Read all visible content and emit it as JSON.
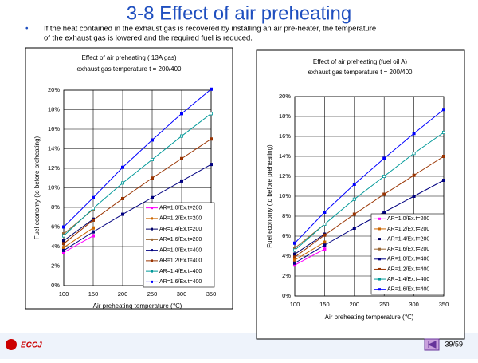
{
  "slide": {
    "title": "3-8 Effect of air preheating",
    "bullet": [
      "If the heat contained in the exhaust gas is recovered by installing an air pre-heater, the temperature",
      "of the exhaust gas is lowered and the required fuel is reduced."
    ],
    "logo": "ECCJ",
    "page_number": "39/59"
  },
  "chart_data": [
    {
      "type": "line",
      "title": "Effect of air preheating ( 13A gas)",
      "subtitle": "exhaust gas temperature t = 200/400",
      "x_label": "Air preheating temperature (℃)",
      "y_label": "Fuel economy (to before preheating)",
      "grid": true,
      "x": [
        100,
        150,
        200,
        250,
        300,
        350
      ],
      "xlim": [
        100,
        350
      ],
      "xticks": [
        100,
        150,
        200,
        250,
        300,
        350
      ],
      "ylim": [
        0,
        20
      ],
      "yticks": [
        {
          "value": 0,
          "label": "0%"
        },
        {
          "value": 2,
          "label": "2%"
        },
        {
          "value": 4,
          "label": "4%"
        },
        {
          "value": 6,
          "label": "6%"
        },
        {
          "value": 8,
          "label": "8%"
        },
        {
          "value": 10,
          "label": "10%"
        },
        {
          "value": 12,
          "label": "12%"
        },
        {
          "value": 14,
          "label": "14%"
        },
        {
          "value": 16,
          "label": "16%"
        },
        {
          "value": 18,
          "label": "18%"
        },
        {
          "value": 20,
          "label": "20%"
        }
      ],
      "series": [
        {
          "name": "AR=1.0/Ex.t=200",
          "color": "#ff00ff",
          "values": [
            3.4,
            5.1,
            null,
            null,
            null,
            null
          ]
        },
        {
          "name": "AR=1.2/Ex.t=200",
          "color": "#cc6600",
          "values": [
            3.9,
            5.9,
            null,
            null,
            null,
            null
          ]
        },
        {
          "name": "AR=1.4/Ex.t=200",
          "color": "#000066",
          "values": [
            4.6,
            6.8,
            null,
            null,
            null,
            null
          ]
        },
        {
          "name": "AR=1.6/Ex.t=200",
          "color": "#996633",
          "values": [
            5.3,
            7.8,
            null,
            null,
            null,
            null
          ]
        },
        {
          "name": "AR=1.0/Ex.t=400",
          "color": "#000080",
          "values": [
            3.6,
            5.5,
            7.3,
            9.0,
            10.7,
            12.4
          ]
        },
        {
          "name": "AR=1.2/Ex.t=400",
          "color": "#993300",
          "values": [
            4.3,
            6.7,
            8.9,
            11.0,
            13.0,
            15.0
          ]
        },
        {
          "name": "AR=1.4/Ex.t=400",
          "color": "#009999",
          "values": [
            5.1,
            7.9,
            10.5,
            12.9,
            15.3,
            17.6
          ]
        },
        {
          "name": "AR=1.6/Ex.t=400",
          "color": "#0000ff",
          "values": [
            6.0,
            9.0,
            12.1,
            14.9,
            17.6,
            20.1
          ]
        }
      ]
    },
    {
      "type": "line",
      "title": "Effect of air preheating (fuel oil A)",
      "subtitle": "exhaust gas temperature t = 200/400",
      "x_label": "Air preheating temperature (℃)",
      "y_label": "Fuel economy (to before preheating)",
      "grid": true,
      "x": [
        100,
        150,
        200,
        250,
        300,
        350
      ],
      "xlim": [
        100,
        350
      ],
      "xticks": [
        100,
        150,
        200,
        250,
        300,
        350
      ],
      "ylim": [
        0,
        20
      ],
      "yticks": [
        {
          "value": 0,
          "label": "0%"
        },
        {
          "value": 2,
          "label": "2%"
        },
        {
          "value": 4,
          "label": "4%"
        },
        {
          "value": 6,
          "label": "6%"
        },
        {
          "value": 8,
          "label": "8%"
        },
        {
          "value": 10,
          "label": "10%"
        },
        {
          "value": 12,
          "label": "12%"
        },
        {
          "value": 14,
          "label": "14%"
        },
        {
          "value": 16,
          "label": "16%"
        },
        {
          "value": 18,
          "label": "18%"
        },
        {
          "value": 20,
          "label": "20%"
        }
      ],
      "series": [
        {
          "name": "AR=1.0/Ex.t=200",
          "color": "#ff00ff",
          "values": [
            3.1,
            4.7,
            null,
            null,
            null,
            null
          ]
        },
        {
          "name": "AR=1.2/Ex.t=200",
          "color": "#cc6600",
          "values": [
            3.6,
            5.4,
            null,
            null,
            null,
            null
          ]
        },
        {
          "name": "AR=1.4/Ex.t=200",
          "color": "#000066",
          "values": [
            4.2,
            6.2,
            null,
            null,
            null,
            null
          ]
        },
        {
          "name": "AR=1.6/Ex.t=200",
          "color": "#996633",
          "values": [
            4.8,
            7.2,
            null,
            null,
            null,
            null
          ]
        },
        {
          "name": "AR=1.0/Ex.t=400",
          "color": "#000080",
          "values": [
            3.3,
            5.1,
            6.8,
            8.4,
            10.0,
            11.6
          ]
        },
        {
          "name": "AR=1.2/Ex.t=400",
          "color": "#993300",
          "values": [
            3.9,
            6.1,
            8.2,
            10.2,
            12.1,
            14.0
          ]
        },
        {
          "name": "AR=1.4/Ex.t=400",
          "color": "#009999",
          "values": [
            4.6,
            7.2,
            9.7,
            12.0,
            14.3,
            16.4
          ]
        },
        {
          "name": "AR=1.6/Ex.t=400",
          "color": "#0000ff",
          "values": [
            5.3,
            8.4,
            11.2,
            13.8,
            16.3,
            18.7
          ]
        }
      ]
    }
  ]
}
